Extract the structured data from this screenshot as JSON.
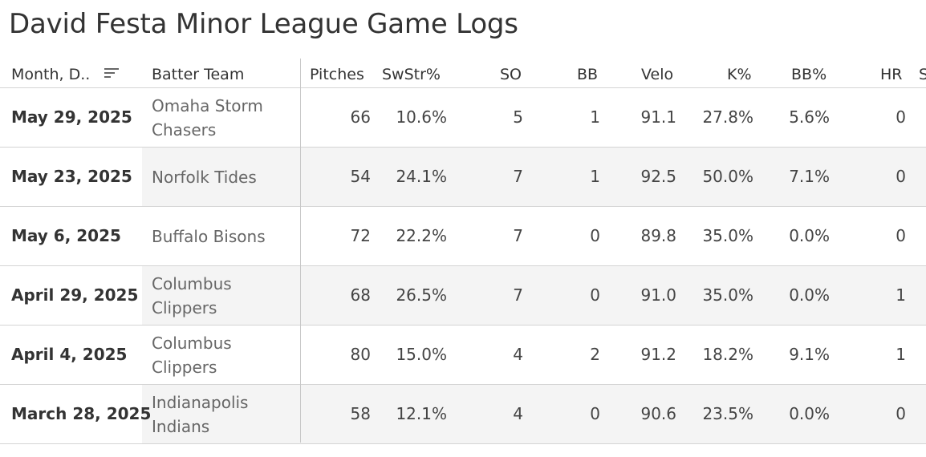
{
  "title": "David Festa Minor League Game Logs",
  "columns": {
    "date": "Month, D..",
    "team": "Batter Team",
    "pitches": "Pitches",
    "swstr": "SwStr%",
    "so": "SO",
    "bb": "BB",
    "velo": "Velo",
    "kpct": "K%",
    "bbpct": "BB%",
    "hr": "HR",
    "extra": "S"
  },
  "rows": [
    {
      "date": "May 29, 2025",
      "team": "Omaha Storm Chasers",
      "pitches": "66",
      "swstr": "10.6%",
      "so": "5",
      "bb": "1",
      "velo": "91.1",
      "kpct": "27.8%",
      "bbpct": "5.6%",
      "hr": "0"
    },
    {
      "date": "May 23, 2025",
      "team": "Norfolk Tides",
      "pitches": "54",
      "swstr": "24.1%",
      "so": "7",
      "bb": "1",
      "velo": "92.5",
      "kpct": "50.0%",
      "bbpct": "7.1%",
      "hr": "0"
    },
    {
      "date": "May 6, 2025",
      "team": "Buffalo Bisons",
      "pitches": "72",
      "swstr": "22.2%",
      "so": "7",
      "bb": "0",
      "velo": "89.8",
      "kpct": "35.0%",
      "bbpct": "0.0%",
      "hr": "0"
    },
    {
      "date": "April 29, 2025",
      "team": "Columbus Clippers",
      "pitches": "68",
      "swstr": "26.5%",
      "so": "7",
      "bb": "0",
      "velo": "91.0",
      "kpct": "35.0%",
      "bbpct": "0.0%",
      "hr": "1"
    },
    {
      "date": "April 4, 2025",
      "team": "Columbus Clippers",
      "pitches": "80",
      "swstr": "15.0%",
      "so": "4",
      "bb": "2",
      "velo": "91.2",
      "kpct": "18.2%",
      "bbpct": "9.1%",
      "hr": "1"
    },
    {
      "date": "March 28, 2025",
      "team": "Indianapolis Indians",
      "pitches": "58",
      "swstr": "12.1%",
      "so": "4",
      "bb": "0",
      "velo": "90.6",
      "kpct": "23.5%",
      "bbpct": "0.0%",
      "hr": "0"
    }
  ],
  "icons": {
    "sort": "sort-descending-icon"
  },
  "colors": {
    "row_shade": "#f4f4f4",
    "grid_line": "#d4d4d4",
    "team_text": "#666666"
  }
}
